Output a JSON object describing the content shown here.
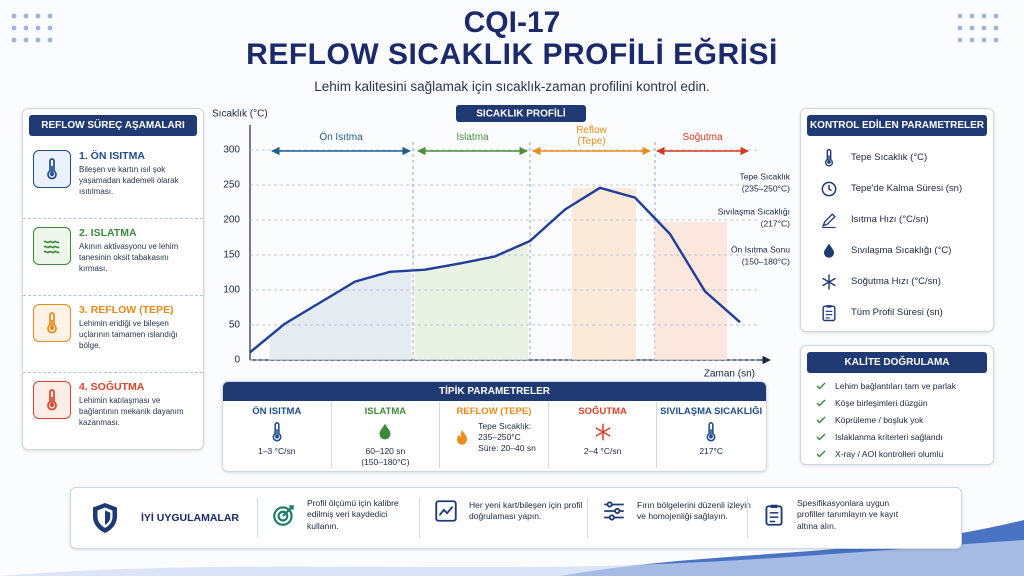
{
  "header": {
    "title": "CQI-17",
    "heading": "REFLOW SICAKLIK PROFİLİ EĞRİSİ",
    "description": "Lehim kalitesini sağlamak için sıcaklık-zaman profilini kontrol edin."
  },
  "stages": {
    "title": "REFLOW SÜREÇ AŞAMALARI",
    "items": [
      {
        "title": "1. ÖN ISITMA",
        "text": "Bileşen ve kartın ısıl şok yaşamadan kademeli olarak ısıtılması."
      },
      {
        "title": "2. ISLATMA",
        "text": "Akının aktivasyonu ve lehim tanesinin oksit tabakasını kırması."
      },
      {
        "title": "3. REFLOW (TEPE)",
        "text": "Lehimin eridiği ve bileşen uçlarının tamamen ıslandığı bölge."
      },
      {
        "title": "4. SOĞUTMA",
        "text": "Lehimin katılaşması ve bağlantının mekanik dayanım kazanması."
      }
    ]
  },
  "chart_data": {
    "type": "line",
    "title": "SICAKLIK PROFİLİ",
    "y_label": "Sıcaklık (°C)",
    "x_label": "Zaman (sn)",
    "categories": [
      null,
      null,
      null,
      null,
      null,
      null,
      null,
      null,
      null,
      null,
      null,
      null,
      null,
      null,
      null
    ],
    "values": [
      11,
      52,
      82,
      112,
      126,
      129,
      138,
      148,
      170,
      215,
      246,
      232,
      180,
      98,
      54
    ],
    "color": "#1f3d9a",
    "ylim": [
      0,
      300
    ],
    "yticks": [
      0,
      50,
      100,
      150,
      200,
      250,
      300
    ],
    "grid": true,
    "phases": [
      {
        "name": "Ön Isıtma",
        "color": "#1f5f8b"
      },
      {
        "name": "Islatma",
        "color": "#4b8f3a"
      },
      {
        "name": "Reflow (Tepe)",
        "color": "#f08a1c"
      },
      {
        "name": "Soğutma",
        "color": "#d9381e"
      }
    ],
    "annotations": [
      {
        "lines": [
          "Tepe Sıcaklık",
          "(235–250°C)"
        ]
      },
      {
        "lines": [
          "Sıvılaşma Sıcaklığı",
          "(217°C)"
        ]
      },
      {
        "lines": [
          "Ön Isıtma Sonu",
          "(150–180°C)"
        ]
      }
    ]
  },
  "typical": {
    "title": "TİPİK PARAMETRELER",
    "columns": [
      {
        "title": "ÖN ISITMA",
        "lines": [
          "1–3 °C/sn"
        ]
      },
      {
        "title": "ISLATMA",
        "lines": [
          "60–120 sn",
          "(150–180°C)"
        ]
      },
      {
        "title": "REFLOW (TEPE)",
        "lines": [
          "Tepe Sıcaklık:",
          "235–250°C",
          "Süre: 20–40 sn"
        ]
      },
      {
        "title": "SOĞUTMA",
        "lines": [
          "2–4 °C/sn"
        ]
      },
      {
        "title": "SIVILAŞMA SICAKLIĞI",
        "lines": [
          "217°C"
        ]
      }
    ]
  },
  "parameters": {
    "title": "KONTROL EDİLEN PARAMETRELER",
    "items": [
      "Tepe Sıcaklık (°C)",
      "Tepe'de Kalma Süresi (sn)",
      "Isıtma Hızı (°C/sn)",
      "Sıvılaşma Sıcaklığı (°C)",
      "Soğutma Hızı (°C/sn)",
      "Tüm Profil Süresi (sn)"
    ]
  },
  "quality": {
    "title": "KALİTE DOĞRULAMA",
    "items": [
      "Lehim bağlantıları tam ve parlak",
      "Köşe birleşimleri düzgün",
      "Köprüleme / boşluk yok",
      "Islaklanma kriterleri sağlandı",
      "X-ray / AOI kontrolleri olumlu"
    ]
  },
  "practices": {
    "title": "İYİ UYGULAMALAR",
    "items": [
      "Profil ölçümü için kalibre edilmiş veri kaydedici kullanın.",
      "Her yeni kart/bileşen için profil doğrulaması yapın.",
      "Fırın bölgelerini düzenli izleyin ve homojenliği sağlayın.",
      "Spesifikasyonlara uygun profiller tanımlayın ve kayıt altına alın."
    ]
  }
}
